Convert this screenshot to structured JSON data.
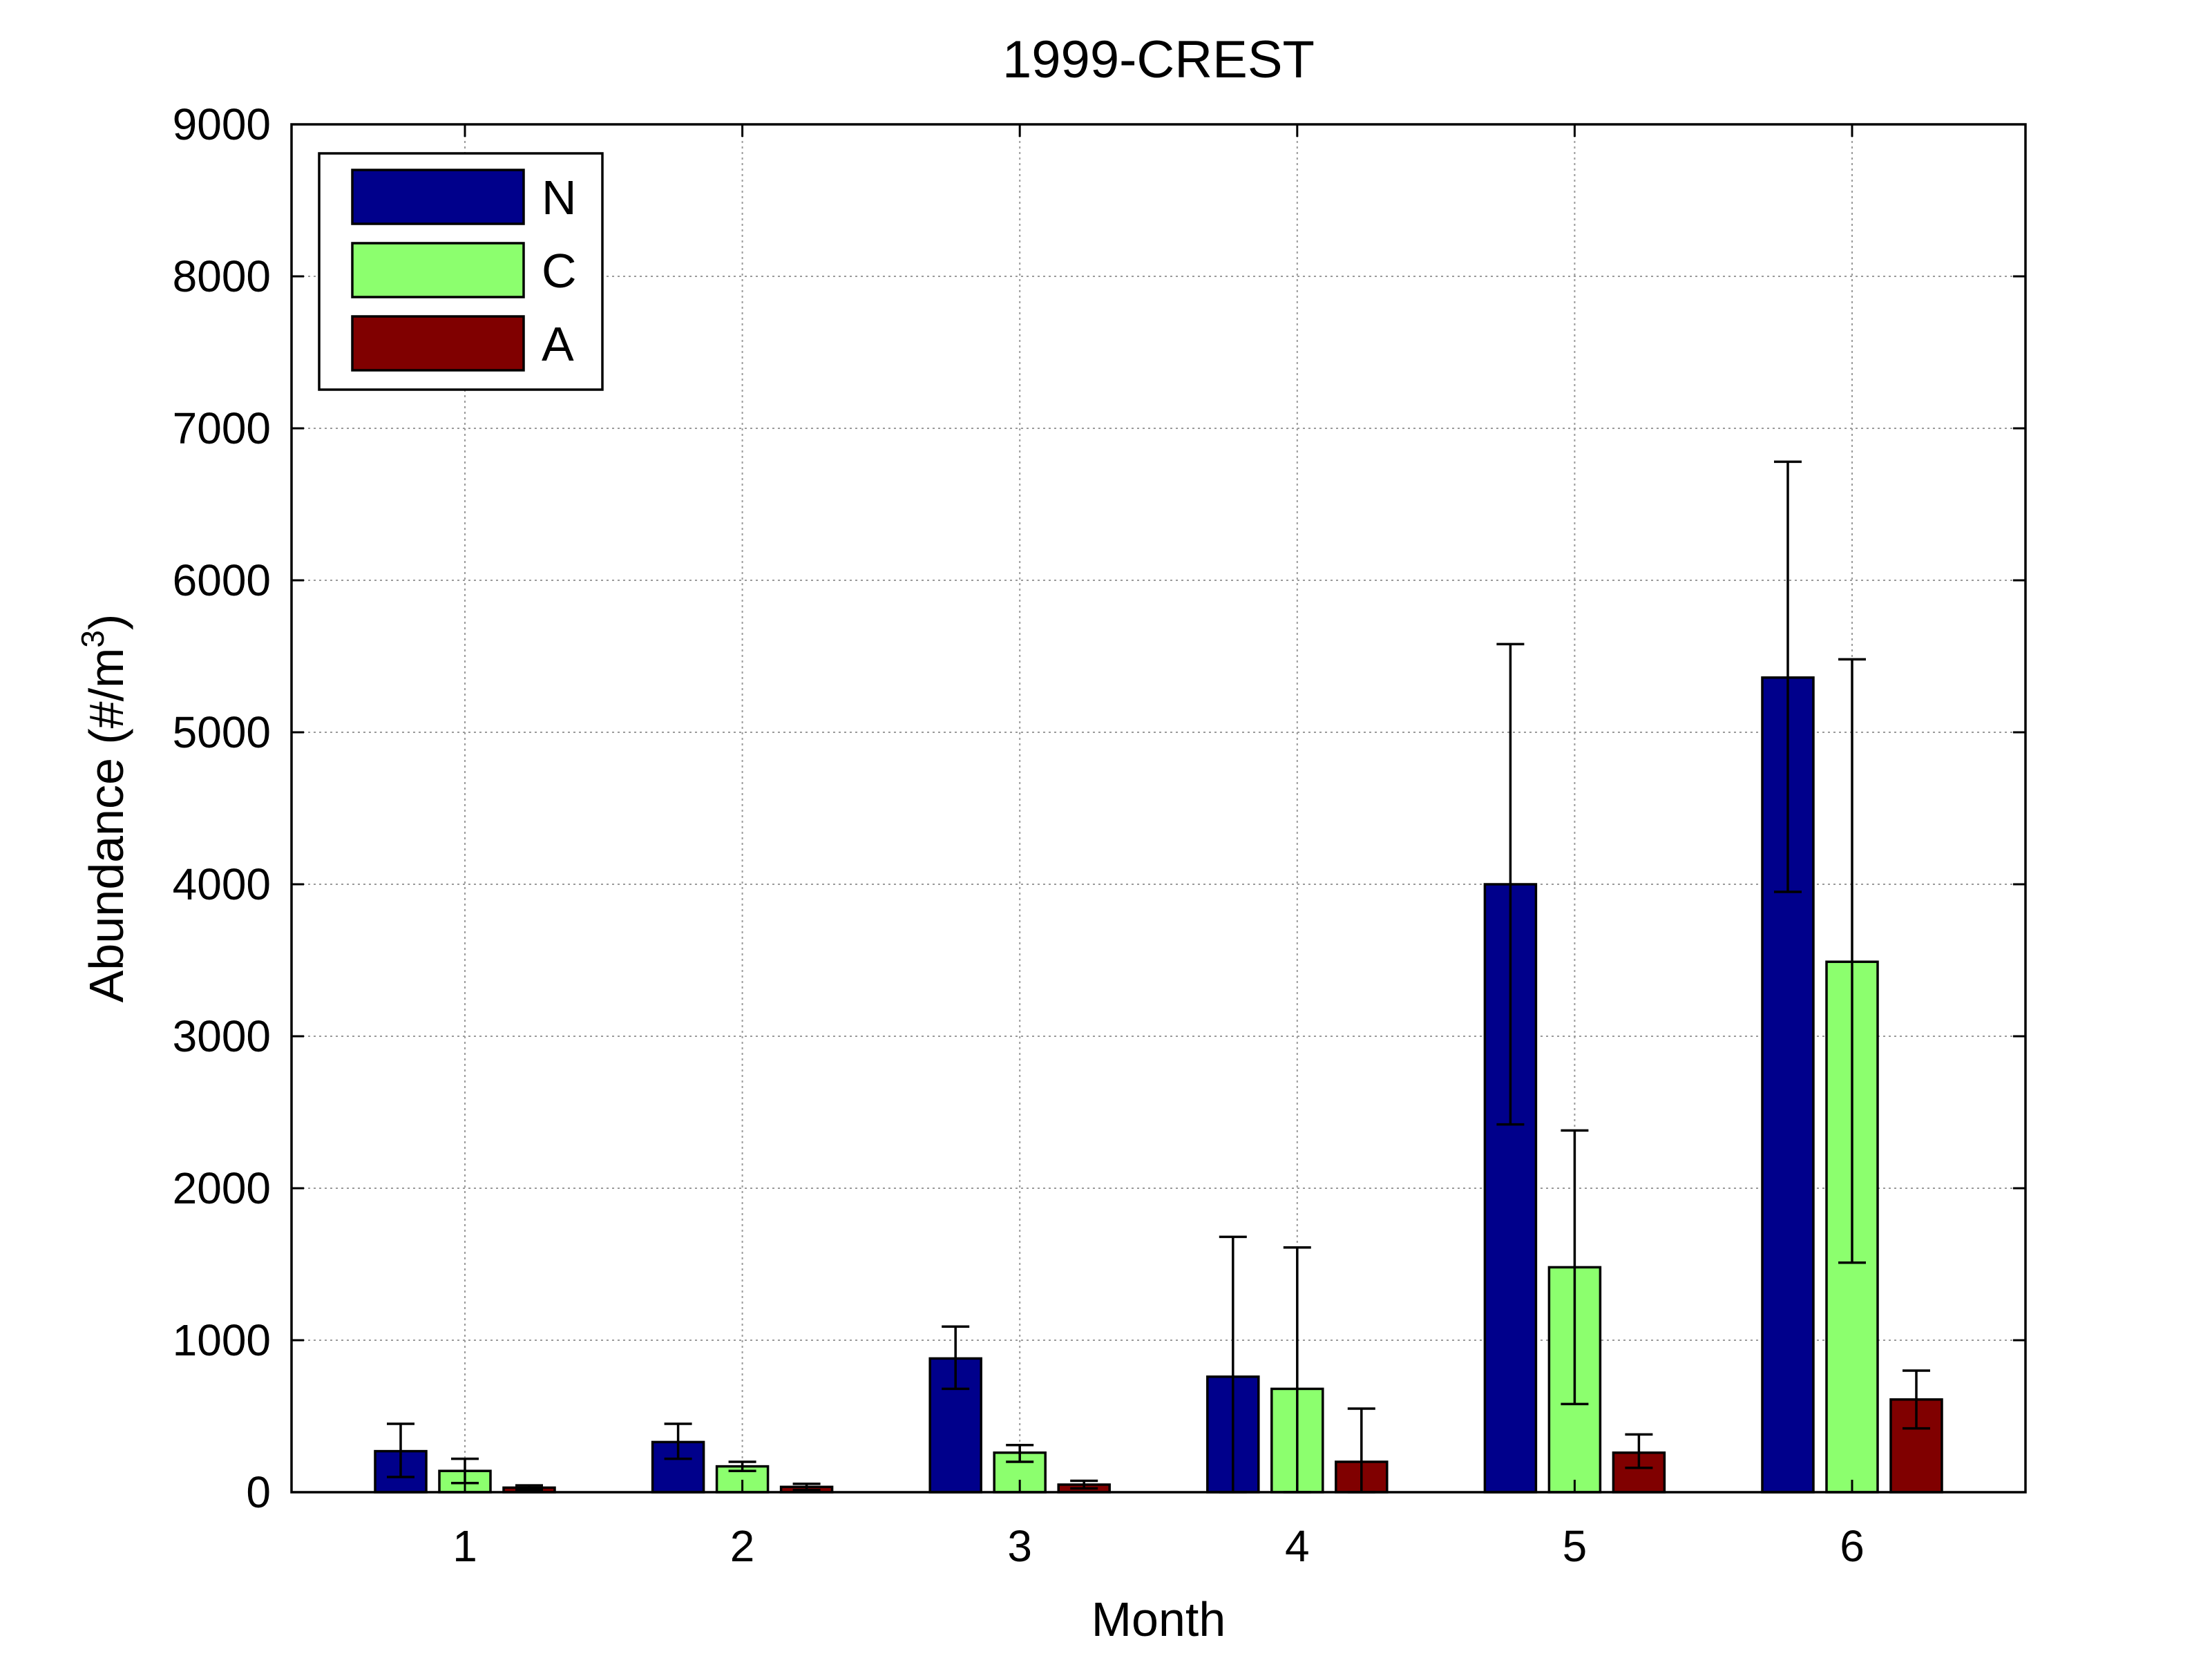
{
  "chart_data": {
    "type": "bar",
    "title": "1999-CREST",
    "xlabel": "Month",
    "ylabel_main": "Abundance (#/m",
    "ylabel_sup": "3",
    "ylabel_close": ")",
    "categories": [
      "1",
      "2",
      "3",
      "4",
      "5",
      "6"
    ],
    "ylim": [
      0,
      9000
    ],
    "yticks": [
      0,
      1000,
      2000,
      3000,
      4000,
      5000,
      6000,
      7000,
      8000,
      9000
    ],
    "ytick_labels": [
      "0",
      "1000",
      "2000",
      "3000",
      "4000",
      "5000",
      "6000",
      "7000",
      "8000",
      "9000"
    ],
    "grid": true,
    "legend_position": "top-left",
    "series": [
      {
        "name": "N",
        "color": "#00008b",
        "values": [
          270,
          330,
          880,
          760,
          4000,
          5360
        ],
        "err_low": [
          100,
          220,
          680,
          0,
          2420,
          3950
        ],
        "err_high": [
          450,
          450,
          1090,
          1680,
          5580,
          6780
        ]
      },
      {
        "name": "C",
        "color": "#8cff6e",
        "values": [
          140,
          170,
          260,
          680,
          1480,
          3490
        ],
        "err_low": [
          60,
          140,
          200,
          0,
          580,
          1510
        ],
        "err_high": [
          220,
          200,
          310,
          1610,
          2380,
          5480
        ]
      },
      {
        "name": "A",
        "color": "#800000",
        "values": [
          30,
          35,
          50,
          200,
          260,
          610
        ],
        "err_low": [
          15,
          15,
          25,
          0,
          160,
          420
        ],
        "err_high": [
          45,
          55,
          75,
          550,
          380,
          800
        ]
      }
    ]
  }
}
